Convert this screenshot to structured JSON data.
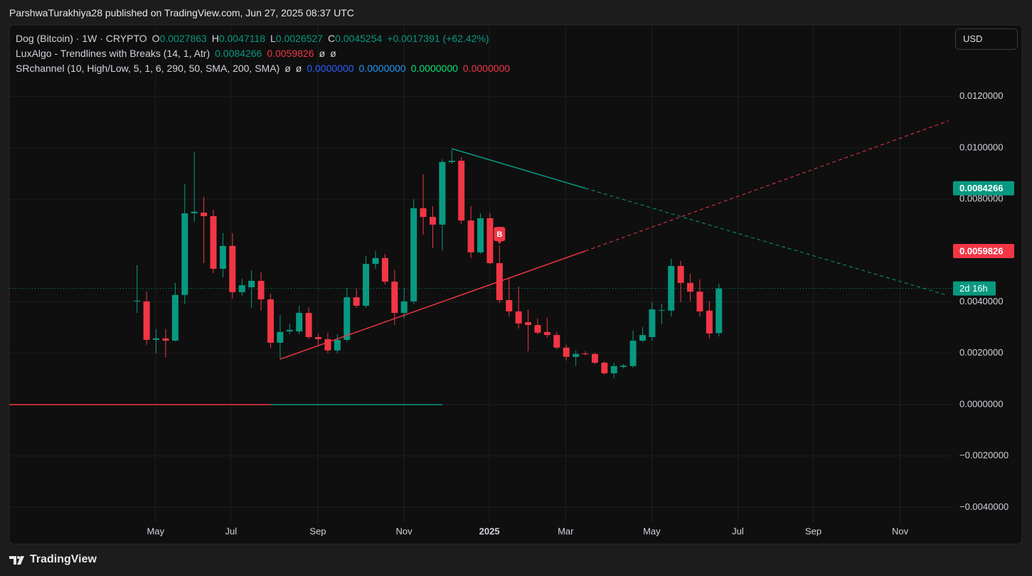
{
  "header": {
    "text": "ParshwaTurakhiya28 published on TradingView.com, Jun 27, 2025 08:37 UTC"
  },
  "legend": [
    [
      {
        "text": "Dog (Bitcoin) · 1W · CRYPTO"
      },
      {
        "label": "O",
        "text": "0.0027863",
        "color": "#089981"
      },
      {
        "label": "H",
        "text": "0.0047118",
        "color": "#089981"
      },
      {
        "label": "L",
        "text": "0.0026527",
        "color": "#089981"
      },
      {
        "label": "C",
        "text": "0.0045254",
        "color": "#089981"
      },
      {
        "text": "+0.0017391 (+62.42%)",
        "color": "#089981"
      }
    ],
    [
      {
        "text": "LuxAlgo - Trendlines with Breaks (14, 1, Atr)"
      },
      {
        "text": "0.0084266",
        "color": "#089981"
      },
      {
        "text": "0.0059826",
        "color": "#f23645"
      },
      {
        "text": "ø"
      },
      {
        "text": "ø"
      }
    ],
    [
      {
        "text": "SRchannel (10, High/Low, 5, 1, 6, 290, 50, SMA, 200, SMA)"
      },
      {
        "text": "ø"
      },
      {
        "text": "ø"
      },
      {
        "text": "0.0000000",
        "color": "#2962ff"
      },
      {
        "text": "0.0000000",
        "color": "#2196f3"
      },
      {
        "text": "0.0000000",
        "color": "#00e676"
      },
      {
        "text": "0.0000000",
        "color": "#f23645"
      }
    ]
  ],
  "currency": "USD",
  "footer": {
    "brand": "TradingView"
  },
  "chart_data": {
    "type": "candlestick",
    "x": [
      0,
      1,
      2,
      3,
      4,
      5,
      6,
      7,
      8,
      9,
      10,
      11,
      12,
      13,
      14,
      15,
      16,
      17,
      18,
      19,
      20,
      21,
      22,
      23,
      24,
      25,
      26,
      27,
      28,
      29,
      30,
      31,
      32,
      33,
      34,
      35,
      36,
      37,
      38,
      39,
      40,
      41,
      42,
      43,
      44,
      45,
      46,
      47,
      48,
      49,
      50,
      51,
      52,
      53,
      54,
      55,
      56,
      57,
      58,
      59,
      60,
      61
    ],
    "open": [
      0.00402,
      0.00402,
      0.00252,
      0.00258,
      0.00249,
      0.00427,
      0.00745,
      0.00748,
      0.00734,
      0.00529,
      0.00618,
      0.00438,
      0.00457,
      0.00482,
      0.0041,
      0.00241,
      0.00285,
      0.00285,
      0.00357,
      0.00263,
      0.00255,
      0.00211,
      0.00252,
      0.00418,
      0.00385,
      0.00548,
      0.00571,
      0.00479,
      0.00357,
      0.00402,
      0.00765,
      0.00731,
      0.00701,
      0.00945,
      0.0095,
      0.00717,
      0.00593,
      0.00726,
      0.00551,
      0.00407,
      0.00363,
      0.00321,
      0.0031,
      0.00283,
      0.00271,
      0.00222,
      0.00186,
      0.00199,
      0.00197,
      0.00163,
      0.00122,
      0.00147,
      0.0015,
      0.00249,
      0.00263,
      0.00366,
      0.00366,
      0.0054,
      0.00474,
      0.0044,
      0.00366,
      0.0027863
    ],
    "high": [
      0.00543,
      0.0044,
      0.00294,
      0.00294,
      0.00474,
      0.00859,
      0.00986,
      0.00809,
      0.00759,
      0.00668,
      0.00668,
      0.0049,
      0.00524,
      0.00515,
      0.00432,
      0.00349,
      0.00316,
      0.00385,
      0.00379,
      0.00277,
      0.0028,
      0.00274,
      0.00454,
      0.00454,
      0.00579,
      0.00598,
      0.00587,
      0.00524,
      0.00454,
      0.008,
      0.00897,
      0.00773,
      0.00956,
      0.00994,
      0.00964,
      0.00773,
      0.00745,
      0.00745,
      0.0062,
      0.00496,
      0.0046,
      0.00371,
      0.00335,
      0.00338,
      0.00283,
      0.00233,
      0.00211,
      0.00208,
      0.00202,
      0.00169,
      0.00163,
      0.00158,
      0.00288,
      0.00302,
      0.00399,
      0.00393,
      0.00568,
      0.0056,
      0.0051,
      0.00488,
      0.00404,
      0.0047118
    ],
    "low": [
      0.00357,
      0.00233,
      0.002,
      0.00183,
      0.00247,
      0.00393,
      0.00712,
      0.00551,
      0.00512,
      0.00496,
      0.00413,
      0.00424,
      0.00377,
      0.00366,
      0.00219,
      0.00177,
      0.00274,
      0.00274,
      0.00255,
      0.00227,
      0.002,
      0.002,
      0.00244,
      0.00377,
      0.00377,
      0.00529,
      0.00468,
      0.0031,
      0.00335,
      0.00391,
      0.00662,
      0.00609,
      0.00601,
      0.00939,
      0.00704,
      0.00571,
      0.00587,
      0.00546,
      0.00396,
      0.00343,
      0.00296,
      0.00208,
      0.00274,
      0.0026,
      0.00216,
      0.00172,
      0.0015,
      0.00191,
      0.00158,
      0.00116,
      0.00102,
      0.00141,
      0.00144,
      0.00244,
      0.00249,
      0.00313,
      0.00343,
      0.00399,
      0.00402,
      0.00343,
      0.00258,
      0.0026527
    ],
    "close": [
      0.00405,
      0.00252,
      0.00258,
      0.00249,
      0.00427,
      0.00745,
      0.00751,
      0.00734,
      0.00529,
      0.00618,
      0.00438,
      0.00465,
      0.00482,
      0.0041,
      0.00241,
      0.00283,
      0.00291,
      0.00357,
      0.00263,
      0.00255,
      0.00211,
      0.00252,
      0.00418,
      0.00385,
      0.00548,
      0.00571,
      0.00479,
      0.00357,
      0.00402,
      0.00765,
      0.00731,
      0.00701,
      0.00945,
      0.0095,
      0.00717,
      0.00593,
      0.00726,
      0.00551,
      0.00407,
      0.00363,
      0.00316,
      0.0031,
      0.0028,
      0.00271,
      0.00222,
      0.00186,
      0.00197,
      0.00197,
      0.00163,
      0.00122,
      0.0015,
      0.00152,
      0.00249,
      0.00271,
      0.00371,
      0.00368,
      0.0054,
      0.00474,
      0.0044,
      0.00363,
      0.00277,
      0.0045254
    ],
    "up_color": "#089981",
    "down_color": "#f23645",
    "xlim": [
      -13.4,
      85.4
    ],
    "xticks": [
      {
        "value": 1.94,
        "label": "May"
      },
      {
        "value": 9.85,
        "label": "Jul"
      },
      {
        "value": 18.96,
        "label": "Sep"
      },
      {
        "value": 27.99,
        "label": "Nov"
      },
      {
        "value": 36.94,
        "label": "2025"
      },
      {
        "value": 44.93,
        "label": "Mar"
      },
      {
        "value": 53.96,
        "label": "May"
      },
      {
        "value": 62.99,
        "label": "Jul"
      },
      {
        "value": 70.9,
        "label": "Sep"
      },
      {
        "value": 80,
        "label": "Nov"
      }
    ],
    "ylim": [
      -0.00543,
      0.01479
    ],
    "yticks": [
      {
        "value": 0.012,
        "label": "0.0120000"
      },
      {
        "value": 0.01,
        "label": "0.0100000"
      },
      {
        "value": 0.008,
        "label": "0.0080000"
      },
      {
        "value": 0.004,
        "label": "0.0040000"
      },
      {
        "value": 0.002,
        "label": "0.0020000"
      },
      {
        "value": 0,
        "label": "0.0000000"
      },
      {
        "value": -0.002,
        "label": "−0.0020000"
      },
      {
        "value": -0.004,
        "label": "−0.0040000"
      }
    ],
    "grid": true,
    "trendlines": [
      {
        "color": "#f23645",
        "x": [
          15,
          47,
          85.07
        ],
        "values": [
          0.00177,
          0.0059826,
          0.01105
        ]
      },
      {
        "color": "#089981",
        "x": [
          33,
          47,
          84.8
        ],
        "values": [
          0.00997,
          0.0084266,
          0.00427
        ]
      }
    ],
    "levels": [
      {
        "color": "#f23645",
        "x": [
          -13.4,
          14
        ],
        "value": 0
      },
      {
        "color": "#089981",
        "x": [
          14,
          32
        ],
        "value": 0
      }
    ],
    "break_labels": [
      {
        "text": "B",
        "x": 38
      }
    ],
    "countdown": "2d 16h"
  }
}
